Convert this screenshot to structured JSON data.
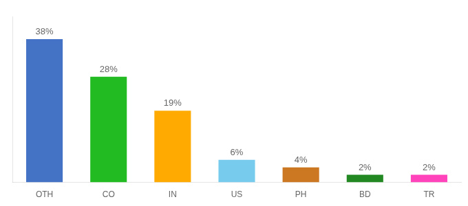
{
  "chart_data": {
    "type": "bar",
    "categories": [
      "OTH",
      "CO",
      "IN",
      "US",
      "PH",
      "BD",
      "TR"
    ],
    "values": [
      38,
      28,
      19,
      6,
      4,
      2,
      2
    ],
    "value_labels": [
      "38%",
      "28%",
      "19%",
      "6%",
      "4%",
      "2%",
      "2%"
    ],
    "data_labels": true,
    "colors": [
      "#4472c4",
      "#22bb22",
      "#ffaa00",
      "#77ccee",
      "#cc7722",
      "#228822",
      "#ff44bb"
    ],
    "ylim": [
      0,
      44
    ],
    "tick_labels": "x",
    "grid": false
  }
}
